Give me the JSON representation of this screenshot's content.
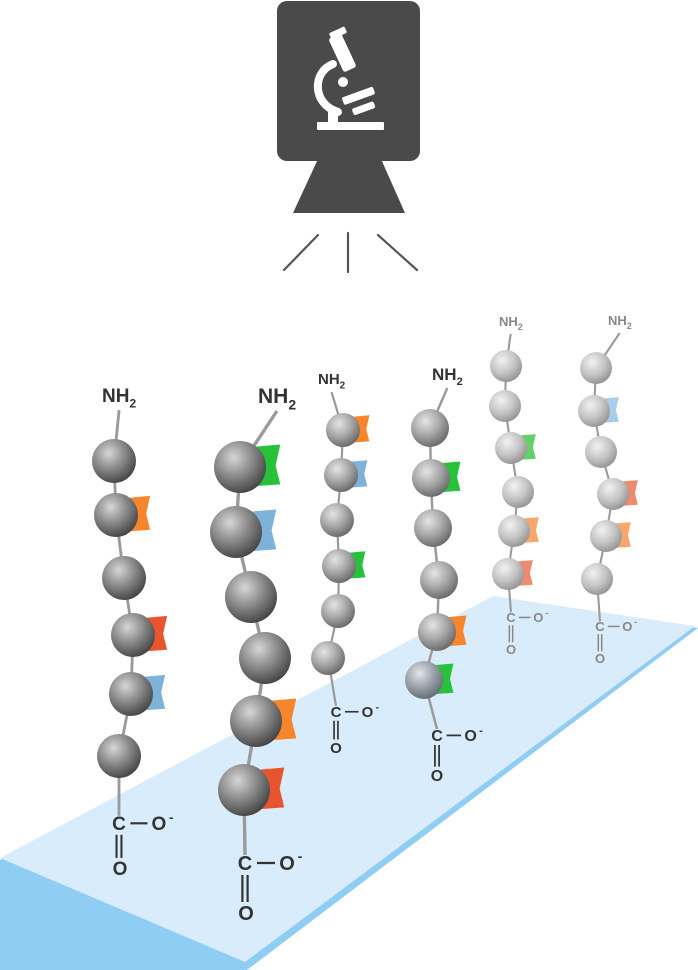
{
  "labels": {
    "n_terminus": "NH",
    "n_terminus_subscript": "2",
    "carbon": "C",
    "oxygen": "O",
    "charge": "-"
  },
  "colors": {
    "camera_body": "#4a4a4a",
    "slide_fill": "#d9ecfb",
    "slide_edge": "#8fcdf5",
    "backbone": "#9a9a9a",
    "label_dark": "#333333",
    "label_light": "#888888",
    "tag_orange": "#f7852c",
    "tag_blue": "#7fb2d8",
    "tag_red": "#e8542c",
    "tag_green": "#27c23a",
    "tag_light_orange": "#f9a66a",
    "tag_salmon": "#ee8a6e",
    "tag_light_green": "#64d06a",
    "tag_light_blue": "#a7cde8"
  },
  "icons": {
    "camera": "camera-icon",
    "microscope": "microscope-icon",
    "light_rays": "light-rays-icon"
  },
  "peptides": [
    {
      "name": "peptide-1",
      "residue_tags": [
        "none",
        "orange",
        "none",
        "red",
        "blue",
        "none"
      ]
    },
    {
      "name": "peptide-2",
      "residue_tags": [
        "green",
        "blue",
        "none",
        "none",
        "orange",
        "red"
      ]
    },
    {
      "name": "peptide-3",
      "residue_tags": [
        "orange",
        "blue",
        "none",
        "green",
        "none",
        "none"
      ]
    },
    {
      "name": "peptide-4",
      "residue_tags": [
        "none",
        "green",
        "none",
        "none",
        "orange",
        "green"
      ]
    },
    {
      "name": "peptide-5",
      "residue_tags": [
        "none",
        "none",
        "light_green",
        "none",
        "light_orange",
        "salmon"
      ]
    },
    {
      "name": "peptide-6",
      "residue_tags": [
        "none",
        "light_blue",
        "none",
        "salmon",
        "light_orange",
        "none"
      ]
    }
  ]
}
